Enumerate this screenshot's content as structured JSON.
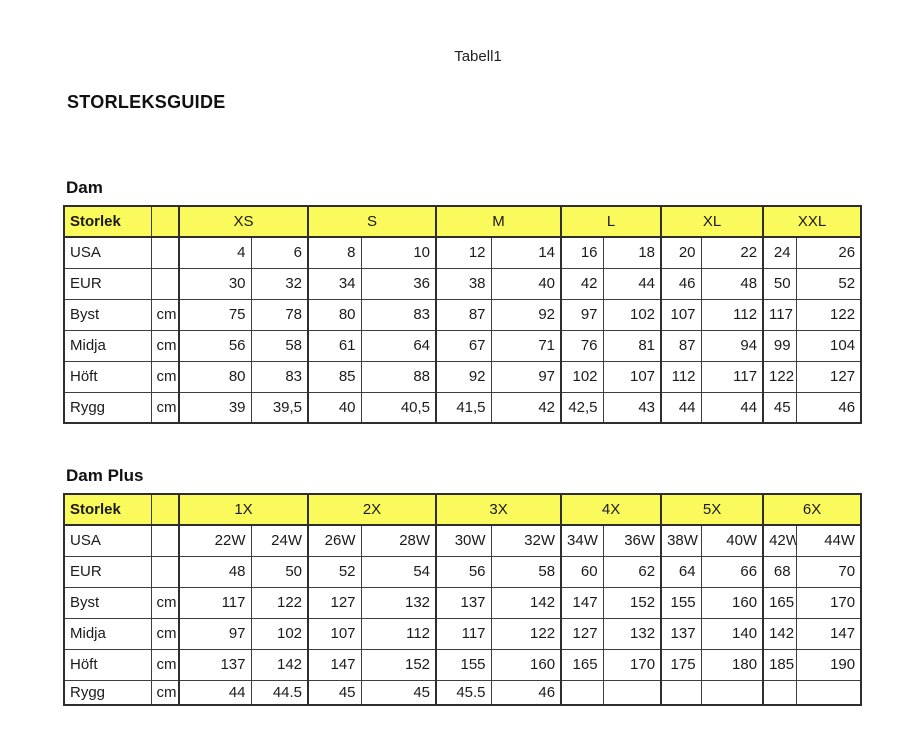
{
  "page": {
    "doc_title": "Tabell1",
    "main_heading": "STORLEKSGUIDE"
  },
  "colors": {
    "header_yellow": "#fafa5c",
    "border": "#2e2e2e",
    "text": "#1b1b1b"
  },
  "tables": [
    {
      "section_title": "Dam",
      "corner_label": "Storlek",
      "size_groups": [
        "XS",
        "S",
        "M",
        "L",
        "XL",
        "XXL"
      ],
      "rows": [
        {
          "label": "USA",
          "unit": "",
          "values": [
            "4",
            "6",
            "8",
            "10",
            "12",
            "14",
            "16",
            "18",
            "20",
            "22",
            "24",
            "26"
          ]
        },
        {
          "label": "EUR",
          "unit": "",
          "values": [
            "30",
            "32",
            "34",
            "36",
            "38",
            "40",
            "42",
            "44",
            "46",
            "48",
            "50",
            "52"
          ]
        },
        {
          "label": "Byst",
          "unit": "cm",
          "values": [
            "75",
            "78",
            "80",
            "83",
            "87",
            "92",
            "97",
            "102",
            "107",
            "112",
            "117",
            "122"
          ]
        },
        {
          "label": "Midja",
          "unit": "cm",
          "values": [
            "56",
            "58",
            "61",
            "64",
            "67",
            "71",
            "76",
            "81",
            "87",
            "94",
            "99",
            "104"
          ]
        },
        {
          "label": "Höft",
          "unit": "cm",
          "values": [
            "80",
            "83",
            "85",
            "88",
            "92",
            "97",
            "102",
            "107",
            "112",
            "117",
            "122",
            "127"
          ]
        },
        {
          "label": "Rygg",
          "unit": "cm",
          "values": [
            "39",
            "39,5",
            "40",
            "40,5",
            "41,5",
            "42",
            "42,5",
            "43",
            "44",
            "44",
            "45",
            "46"
          ]
        }
      ]
    },
    {
      "section_title": "Dam Plus",
      "corner_label": "Storlek",
      "size_groups": [
        "1X",
        "2X",
        "3X",
        "4X",
        "5X",
        "6X"
      ],
      "rows": [
        {
          "label": "USA",
          "unit": "",
          "values": [
            "22W",
            "24W",
            "26W",
            "28W",
            "30W",
            "32W",
            "34W",
            "36W",
            "38W",
            "40W",
            "42W",
            "44W"
          ]
        },
        {
          "label": "EUR",
          "unit": "",
          "values": [
            "48",
            "50",
            "52",
            "54",
            "56",
            "58",
            "60",
            "62",
            "64",
            "66",
            "68",
            "70"
          ]
        },
        {
          "label": "Byst",
          "unit": "cm",
          "values": [
            "117",
            "122",
            "127",
            "132",
            "137",
            "142",
            "147",
            "152",
            "155",
            "160",
            "165",
            "170"
          ]
        },
        {
          "label": "Midja",
          "unit": "cm",
          "values": [
            "97",
            "102",
            "107",
            "112",
            "117",
            "122",
            "127",
            "132",
            "137",
            "140",
            "142",
            "147"
          ]
        },
        {
          "label": "Höft",
          "unit": "cm",
          "values": [
            "137",
            "142",
            "147",
            "152",
            "155",
            "160",
            "165",
            "170",
            "175",
            "180",
            "185",
            "190"
          ]
        },
        {
          "label": "Rygg",
          "unit": "cm",
          "values": [
            "44",
            "44.5",
            "45",
            "45",
            "45.5",
            "46",
            "",
            "",
            "",
            "",
            "",
            ""
          ]
        }
      ]
    }
  ]
}
